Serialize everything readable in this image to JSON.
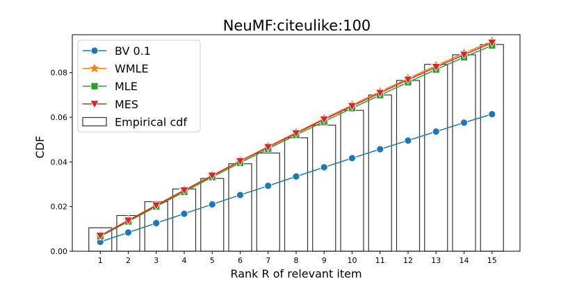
{
  "chart_data": {
    "type": "line",
    "title": "NeuMF:citeulike:100",
    "xlabel": "Rank R of relevant item",
    "ylabel": "CDF",
    "x": [
      1,
      2,
      3,
      4,
      5,
      6,
      7,
      8,
      9,
      10,
      11,
      12,
      13,
      14,
      15
    ],
    "xlim": [
      0.0,
      16.0
    ],
    "ylim": [
      0.0,
      0.097
    ],
    "yticks": [
      0.0,
      0.02,
      0.04,
      0.06,
      0.08
    ],
    "ytick_labels": [
      "0.00",
      "0.02",
      "0.04",
      "0.06",
      "0.08"
    ],
    "grid": false,
    "legend_position": "top-left",
    "series": [
      {
        "name": "BV 0.1",
        "color": "#1f77b4",
        "marker": "circle",
        "values": [
          0.0042,
          0.0084,
          0.0126,
          0.0168,
          0.021,
          0.0252,
          0.0293,
          0.0335,
          0.0376,
          0.0417,
          0.0457,
          0.0496,
          0.0536,
          0.0576,
          0.0614
        ]
      },
      {
        "name": "WMLE",
        "color": "#ff7f0e",
        "marker": "star",
        "values": [
          0.007,
          0.0139,
          0.0207,
          0.0274,
          0.034,
          0.0405,
          0.0469,
          0.0532,
          0.0594,
          0.0655,
          0.0715,
          0.0774,
          0.0832,
          0.0888,
          0.0941
        ]
      },
      {
        "name": "MLE",
        "color": "#2ca02c",
        "marker": "square",
        "values": [
          0.0066,
          0.0133,
          0.02,
          0.0266,
          0.0332,
          0.0396,
          0.0459,
          0.0521,
          0.0581,
          0.0641,
          0.0699,
          0.0757,
          0.0814,
          0.0869,
          0.0922
        ]
      },
      {
        "name": "MES",
        "color": "#d62728",
        "marker": "triangle-down",
        "values": [
          0.0069,
          0.0137,
          0.0205,
          0.0272,
          0.0338,
          0.0403,
          0.0466,
          0.0528,
          0.059,
          0.065,
          0.0709,
          0.0768,
          0.0825,
          0.088,
          0.0934
        ]
      },
      {
        "name": "Empirical cdf",
        "type": "bar",
        "color": "#333333",
        "marker": "hollow-bar",
        "values": [
          0.0105,
          0.016,
          0.0222,
          0.0279,
          0.0326,
          0.0392,
          0.044,
          0.0508,
          0.0565,
          0.0631,
          0.07,
          0.0765,
          0.0837,
          0.088,
          0.0926
        ]
      }
    ]
  }
}
